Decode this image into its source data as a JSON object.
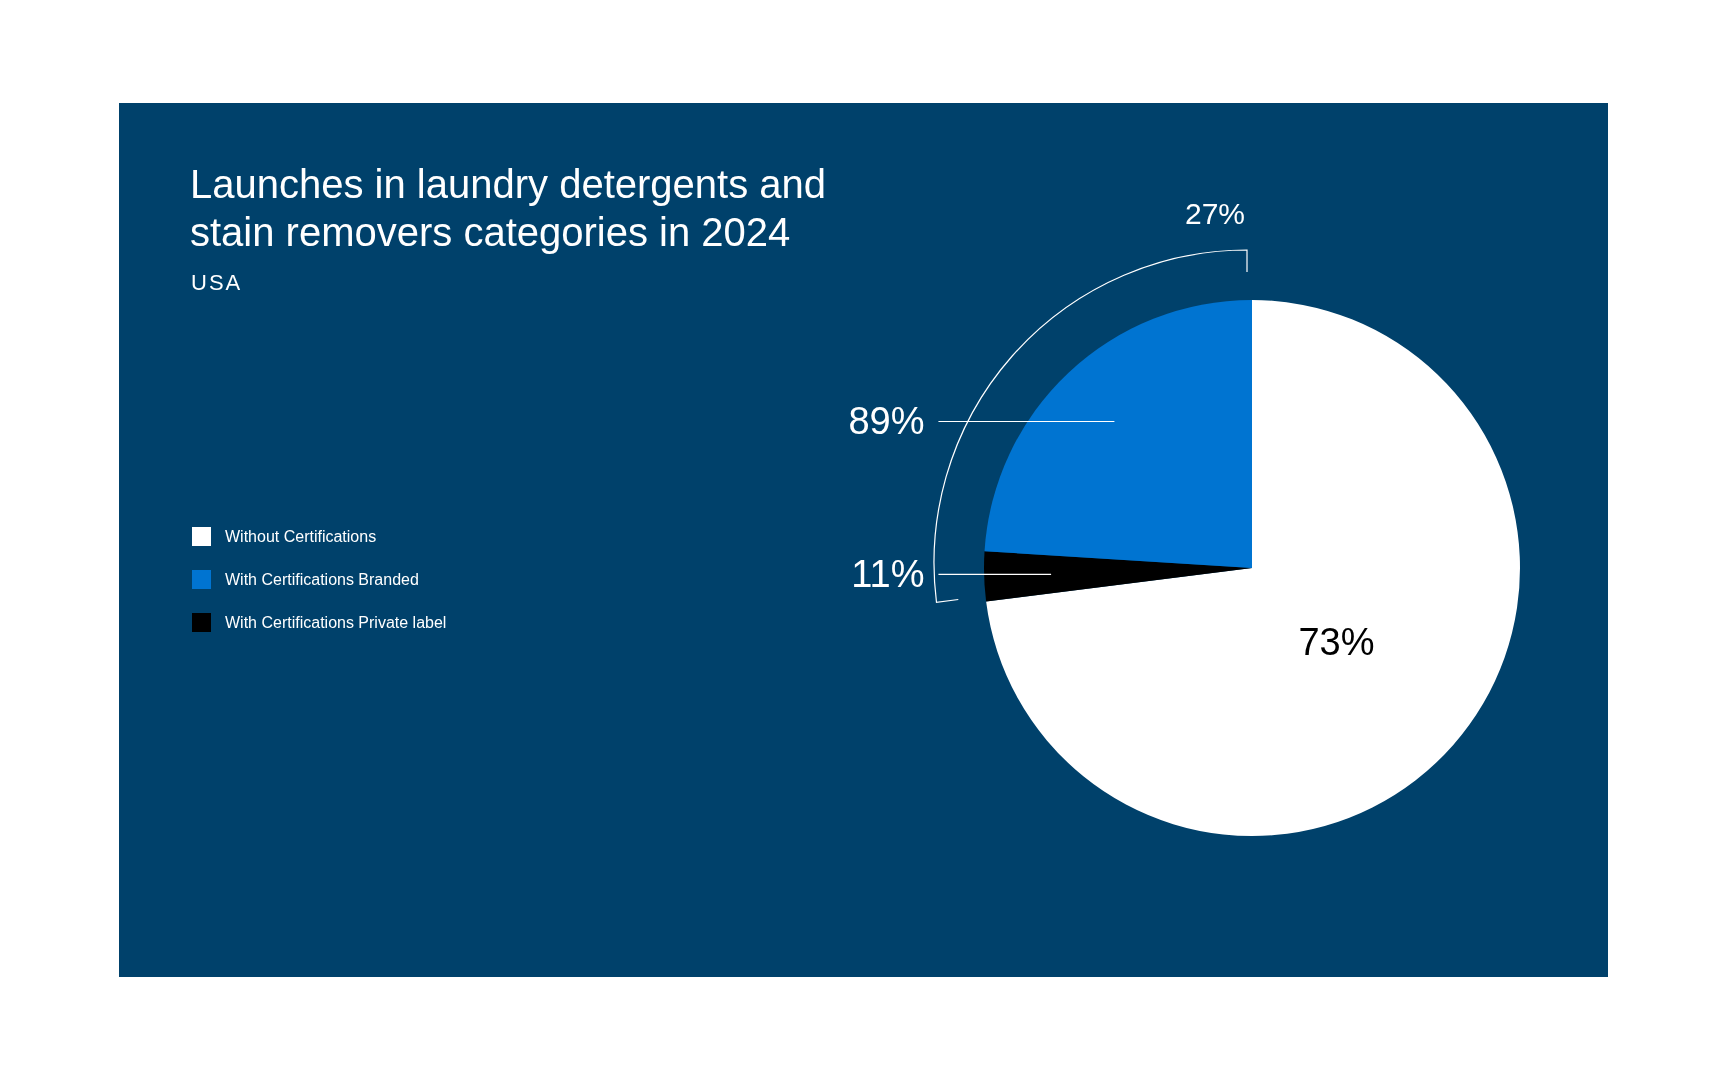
{
  "chart_data": {
    "type": "pie",
    "title": "Launches in laundry detergents and stain removers categories in 2024",
    "subtitle": "USA",
    "categories": [
      "Without Certifications",
      "With Certifications Branded",
      "With Certifications Private label"
    ],
    "values": [
      73,
      24,
      3
    ],
    "value_labels": [
      "73%",
      null,
      null
    ],
    "colors": [
      "#ffffff",
      "#0074d1",
      "#000000"
    ],
    "annotations": [
      "27%",
      "89%",
      "11%"
    ],
    "legend": "left"
  }
}
